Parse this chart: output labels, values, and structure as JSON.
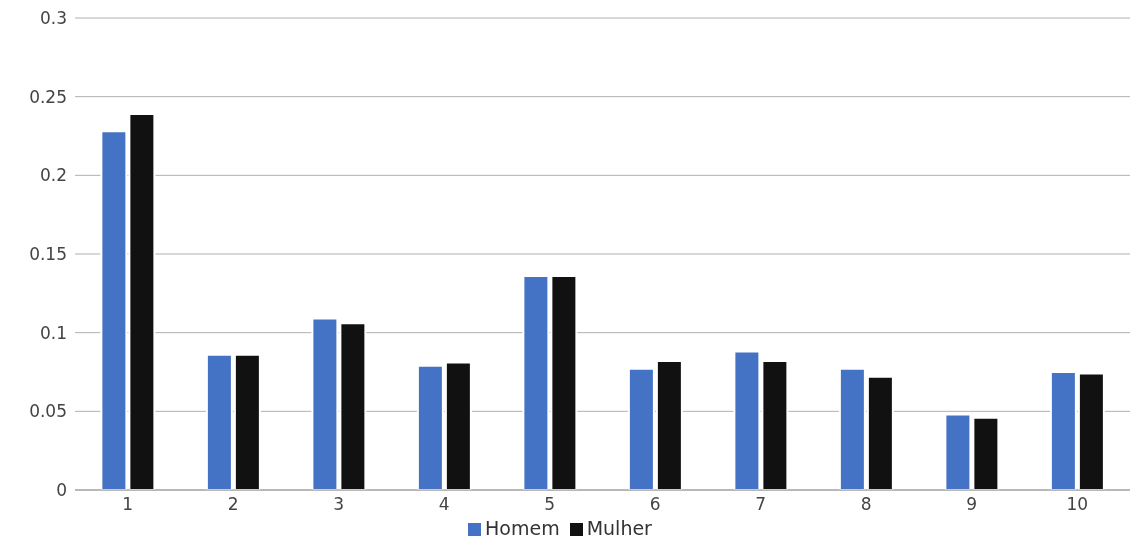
{
  "chart_data": {
    "type": "bar",
    "categories": [
      "1",
      "2",
      "3",
      "4",
      "5",
      "6",
      "7",
      "8",
      "9",
      "10"
    ],
    "series": [
      {
        "name": "Homem",
        "color": "#4472c4",
        "values": [
          0.228,
          0.086,
          0.109,
          0.079,
          0.136,
          0.077,
          0.088,
          0.077,
          0.048,
          0.075
        ]
      },
      {
        "name": "Mulher",
        "color": "#111111",
        "values": [
          0.239,
          0.086,
          0.106,
          0.081,
          0.136,
          0.082,
          0.082,
          0.072,
          0.046,
          0.074
        ]
      }
    ],
    "ylim": [
      0,
      0.3
    ],
    "yticks": [
      0,
      0.05,
      0.1,
      0.15,
      0.2,
      0.25,
      0.3
    ],
    "grid": "y",
    "legend": "bottom"
  }
}
